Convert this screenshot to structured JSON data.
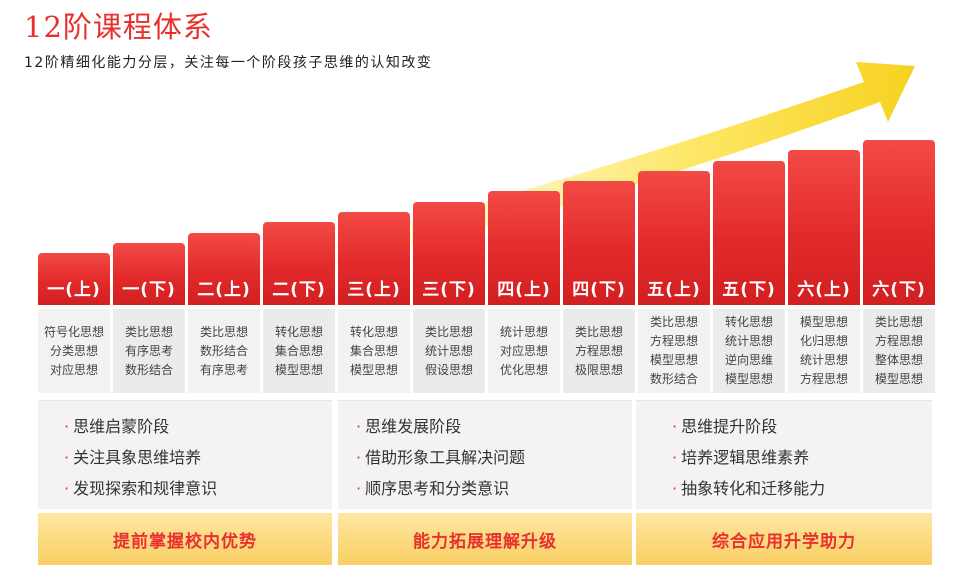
{
  "header": {
    "title": "12阶课程体系",
    "subtitle": "12阶精细化能力分层，关注每一个阶段孩子思维的认知改变"
  },
  "colors": {
    "accent": "#e8312f",
    "arrow_yellow": "#fbe24a",
    "footer_gold": "#f9cf63"
  },
  "levels": [
    {
      "label": "一(上)",
      "topics": [
        "符号化思想",
        "分类思想",
        "对应思想"
      ]
    },
    {
      "label": "一(下)",
      "topics": [
        "类比思想",
        "有序思考",
        "数形结合"
      ]
    },
    {
      "label": "二(上)",
      "topics": [
        "类比思想",
        "数形结合",
        "有序思考"
      ]
    },
    {
      "label": "二(下)",
      "topics": [
        "转化思想",
        "集合思想",
        "模型思想"
      ]
    },
    {
      "label": "三(上)",
      "topics": [
        "转化思想",
        "集合思想",
        "模型思想"
      ]
    },
    {
      "label": "三(下)",
      "topics": [
        "类比思想",
        "统计思想",
        "假设思想"
      ]
    },
    {
      "label": "四(上)",
      "topics": [
        "统计思想",
        "对应思想",
        "优化思想"
      ]
    },
    {
      "label": "四(下)",
      "topics": [
        "类比思想",
        "方程思想",
        "极限思想"
      ]
    },
    {
      "label": "五(上)",
      "topics": [
        "类比思想",
        "方程思想",
        "模型思想",
        "数形结合"
      ]
    },
    {
      "label": "五(下)",
      "topics": [
        "转化思想",
        "统计思想",
        "逆向思维",
        "模型思想"
      ]
    },
    {
      "label": "六(上)",
      "topics": [
        "模型思想",
        "化归思想",
        "统计思想",
        "方程思想"
      ]
    },
    {
      "label": "六(下)",
      "topics": [
        "类比思想",
        "方程思想",
        "整体思想",
        "模型思想"
      ]
    }
  ],
  "stages": [
    {
      "items": [
        "思维启蒙阶段",
        "关注具象思维培养",
        "发现探索和规律意识"
      ],
      "footer": "提前掌握校内优势"
    },
    {
      "items": [
        "思维发展阶段",
        "借助形象工具解决问题",
        "顺序思考和分类意识"
      ],
      "footer": "能力拓展理解升级"
    },
    {
      "items": [
        "思维提升阶段",
        "培养逻辑思维素养",
        "抽象转化和迁移能力"
      ],
      "footer": "综合应用升学助力"
    }
  ],
  "bullet": "·"
}
